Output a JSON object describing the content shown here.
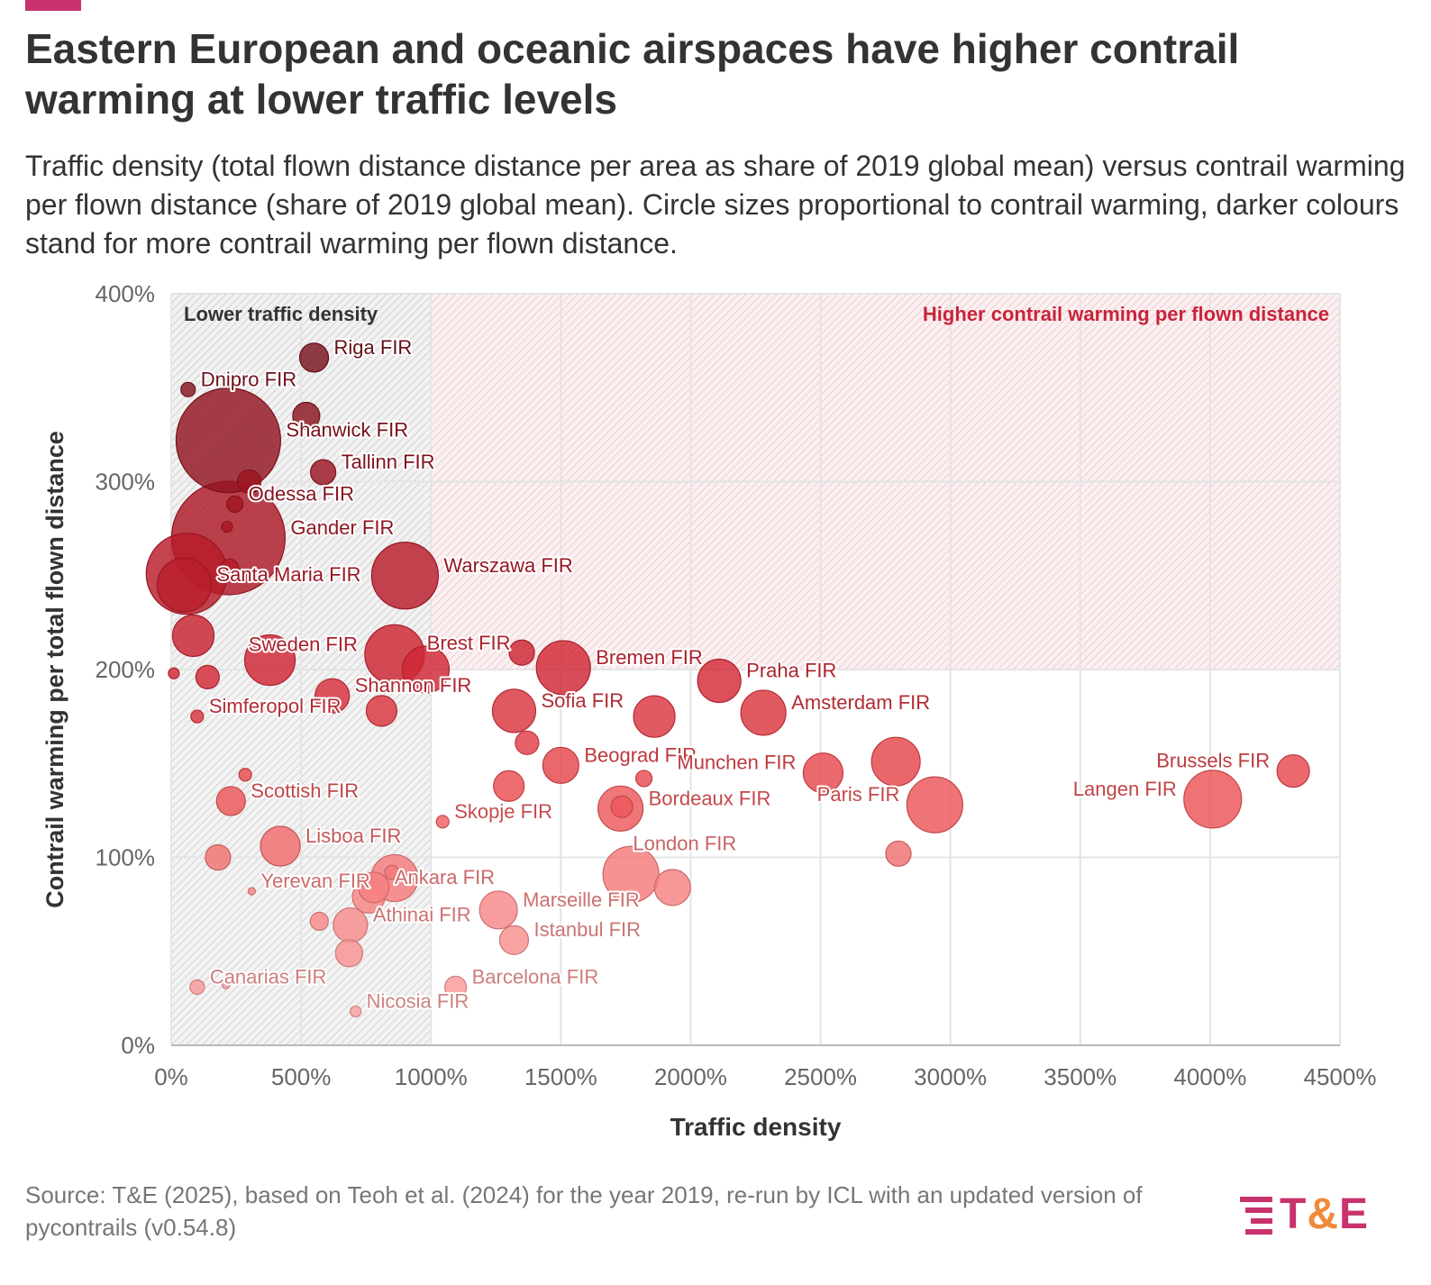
{
  "header": {
    "title": "Eastern European and oceanic airspaces have higher contrail warming at lower traffic levels",
    "subtitle": "Traffic density (total flown distance distance per area as share of 2019 global mean) versus contrail warming per flown distance (share of 2019 global mean). Circle sizes proportional to contrail warming, darker colours stand for more contrail warming per flown distance."
  },
  "footer": {
    "source": "Source: T&E (2025), based on Teoh et al. (2024) for the year 2019, re-run by ICL with an updated version of pycontrails (v0.54.8)",
    "logo_t": "T",
    "logo_amp": "&",
    "logo_e": "E"
  },
  "colors": {
    "accent": "#c8336e",
    "logo_pink": "#c8336e",
    "logo_orange": "#f08a3a",
    "darkest": "#7d0f1c",
    "lightest": "#fba7a7"
  },
  "chart_data": {
    "type": "scatter",
    "xlabel": "Traffic density",
    "ylabel": "Contrail warming per total flown distance",
    "xlim": [
      0,
      4500
    ],
    "ylim": [
      0,
      400
    ],
    "xticks": [
      "0%",
      "500%",
      "1000%",
      "1500%",
      "2000%",
      "2500%",
      "3000%",
      "3500%",
      "4000%",
      "4500%"
    ],
    "yticks": [
      "0%",
      "100%",
      "200%",
      "300%",
      "400%"
    ],
    "grid": true,
    "regions": [
      {
        "label": "Lower traffic density",
        "x": [
          0,
          1000
        ],
        "y": [
          0,
          400
        ]
      },
      {
        "label": "Higher contrail warming per flown distance",
        "x": [
          0,
          4500
        ],
        "y": [
          200,
          400
        ]
      }
    ],
    "points": [
      {
        "x": 550,
        "y": 366,
        "r": 16,
        "label": "Riga FIR",
        "align": "right"
      },
      {
        "x": 65,
        "y": 349,
        "r": 8,
        "label": "Dnipro FIR",
        "align": "right"
      },
      {
        "x": 520,
        "y": 335,
        "r": 15,
        "label": "",
        "align": "right"
      },
      {
        "x": 220,
        "y": 322,
        "r": 58,
        "label": "Shanwick FIR",
        "align": "right"
      },
      {
        "x": 585,
        "y": 305,
        "r": 14,
        "label": "Tallinn FIR",
        "align": "right"
      },
      {
        "x": 300,
        "y": 300,
        "r": 13,
        "label": "",
        "align": "right"
      },
      {
        "x": 245,
        "y": 288,
        "r": 9,
        "label": "Odessa FIR",
        "align": "right"
      },
      {
        "x": 215,
        "y": 276,
        "r": 6,
        "label": "",
        "align": "right"
      },
      {
        "x": 220,
        "y": 270,
        "r": 63,
        "label": "Gander FIR",
        "align": "right"
      },
      {
        "x": 60,
        "y": 251,
        "r": 45,
        "label": "",
        "align": "right"
      },
      {
        "x": 50,
        "y": 245,
        "r": 30,
        "label": "Santa Maria FIR",
        "align": "right"
      },
      {
        "x": 225,
        "y": 254,
        "r": 10,
        "label": "",
        "align": "right"
      },
      {
        "x": 900,
        "y": 250,
        "r": 37,
        "label": "Warszawa FIR",
        "align": "right"
      },
      {
        "x": 85,
        "y": 218,
        "r": 23,
        "label": "",
        "align": "right"
      },
      {
        "x": 380,
        "y": 205,
        "r": 28,
        "label": "",
        "align": "right"
      },
      {
        "x": 860,
        "y": 208,
        "r": 33,
        "label": "Sweden FIR",
        "align": "left"
      },
      {
        "x": 980,
        "y": 200,
        "r": 26,
        "label": "Brest FIR",
        "align": "right-up"
      },
      {
        "x": 1350,
        "y": 209,
        "r": 14,
        "label": "",
        "align": "right"
      },
      {
        "x": 1510,
        "y": 201,
        "r": 30,
        "label": "Bremen FIR",
        "align": "right"
      },
      {
        "x": 2110,
        "y": 194,
        "r": 24,
        "label": "Praha FIR",
        "align": "right"
      },
      {
        "x": 10,
        "y": 198,
        "r": 6,
        "label": "",
        "align": "right"
      },
      {
        "x": 140,
        "y": 196,
        "r": 13,
        "label": "",
        "align": "right"
      },
      {
        "x": 620,
        "y": 186,
        "r": 19,
        "label": "Shannon FIR",
        "align": "right"
      },
      {
        "x": 810,
        "y": 178,
        "r": 17,
        "label": "",
        "align": "right"
      },
      {
        "x": 100,
        "y": 175,
        "r": 7,
        "label": "Simferopol FIR",
        "align": "right"
      },
      {
        "x": 1320,
        "y": 178,
        "r": 24,
        "label": "Sofia FIR",
        "align": "right"
      },
      {
        "x": 1860,
        "y": 175,
        "r": 23,
        "label": "",
        "align": "right"
      },
      {
        "x": 2280,
        "y": 177,
        "r": 25,
        "label": "Amsterdam FIR",
        "align": "right"
      },
      {
        "x": 1370,
        "y": 161,
        "r": 13,
        "label": "",
        "align": "right"
      },
      {
        "x": 1500,
        "y": 149,
        "r": 20,
        "label": "Beograd FIR",
        "align": "right"
      },
      {
        "x": 2510,
        "y": 145,
        "r": 22,
        "label": "Munchen FIR",
        "align": "left"
      },
      {
        "x": 2790,
        "y": 151,
        "r": 27,
        "label": "",
        "align": "right"
      },
      {
        "x": 4320,
        "y": 146,
        "r": 18,
        "label": "Brussels FIR",
        "align": "left"
      },
      {
        "x": 285,
        "y": 144,
        "r": 7,
        "label": "",
        "align": "right"
      },
      {
        "x": 1820,
        "y": 142,
        "r": 9,
        "label": "",
        "align": "right"
      },
      {
        "x": 1300,
        "y": 138,
        "r": 17,
        "label": "",
        "align": "right"
      },
      {
        "x": 230,
        "y": 130,
        "r": 16,
        "label": "Scottish FIR",
        "align": "right"
      },
      {
        "x": 1730,
        "y": 126,
        "r": 25,
        "label": "Bordeaux FIR",
        "align": "right"
      },
      {
        "x": 1735,
        "y": 127,
        "r": 12,
        "label": "",
        "align": "right"
      },
      {
        "x": 2940,
        "y": 128,
        "r": 31,
        "label": "Paris FIR",
        "align": "left"
      },
      {
        "x": 4010,
        "y": 131,
        "r": 32,
        "label": "Langen FIR",
        "align": "left"
      },
      {
        "x": 1045,
        "y": 119,
        "r": 7,
        "label": "Skopje FIR",
        "align": "right"
      },
      {
        "x": 420,
        "y": 106,
        "r": 22,
        "label": "Lisboa FIR",
        "align": "right"
      },
      {
        "x": 180,
        "y": 100,
        "r": 14,
        "label": "",
        "align": "right"
      },
      {
        "x": 2800,
        "y": 102,
        "r": 14,
        "label": "",
        "align": "right"
      },
      {
        "x": 1770,
        "y": 91,
        "r": 31,
        "label": "London FIR",
        "align": "right-up"
      },
      {
        "x": 860,
        "y": 89,
        "r": 26,
        "label": "",
        "align": "right"
      },
      {
        "x": 850,
        "y": 92,
        "r": 8,
        "label": "",
        "align": "right"
      },
      {
        "x": 1930,
        "y": 84,
        "r": 20,
        "label": "",
        "align": "right"
      },
      {
        "x": 310,
        "y": 82,
        "r": 4,
        "label": "Yerevan FIR",
        "align": "right"
      },
      {
        "x": 780,
        "y": 84,
        "r": 17,
        "label": "Ankara FIR",
        "align": "right"
      },
      {
        "x": 760,
        "y": 79,
        "r": 18,
        "label": "",
        "align": "right"
      },
      {
        "x": 1260,
        "y": 72,
        "r": 21,
        "label": "Marseille FIR",
        "align": "right"
      },
      {
        "x": 690,
        "y": 64,
        "r": 19,
        "label": "Athinai FIR",
        "align": "right"
      },
      {
        "x": 570,
        "y": 66,
        "r": 10,
        "label": "",
        "align": "right"
      },
      {
        "x": 1320,
        "y": 56,
        "r": 16,
        "label": "Istanbul FIR",
        "align": "right"
      },
      {
        "x": 685,
        "y": 49,
        "r": 15,
        "label": "",
        "align": "right"
      },
      {
        "x": 1095,
        "y": 31,
        "r": 12,
        "label": "Barcelona FIR",
        "align": "right"
      },
      {
        "x": 100,
        "y": 31,
        "r": 8,
        "label": "Canarias FIR",
        "align": "right"
      },
      {
        "x": 210,
        "y": 32,
        "r": 4,
        "label": "",
        "align": "right"
      },
      {
        "x": 710,
        "y": 18,
        "r": 6,
        "label": "Nicosia FIR",
        "align": "right"
      }
    ]
  }
}
